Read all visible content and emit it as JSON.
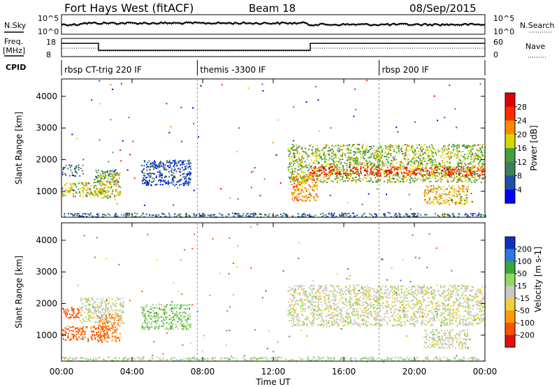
{
  "header": {
    "station": "Fort Hays West (fitACF)",
    "beam": "Beam 18",
    "date": "08/Sep/2015"
  },
  "top_panel": {
    "left_label": "N.Sky",
    "right_label": "N.Search",
    "left_ticks": [
      "10^5",
      "10^0"
    ],
    "right_ticks": [
      "10^5",
      "10^0"
    ]
  },
  "freq_panel": {
    "left_label_line1": "Freq.",
    "left_label_line2": "[MHz]",
    "right_label": "Nave",
    "left_ticks": [
      "18",
      "8"
    ],
    "right_ticks": [
      "60",
      "0"
    ]
  },
  "cpid": {
    "label": "CPID",
    "segments": [
      {
        "label": "rbsp CT-trig 220 IF",
        "start_hour": 0.0
      },
      {
        "label": "themis -3300 IF",
        "start_hour": 7.7
      },
      {
        "label": "rbsp 200 IF",
        "start_hour": 18.0
      }
    ]
  },
  "chart_data": [
    {
      "type": "heatmap",
      "name": "power",
      "title": "",
      "xlabel": "",
      "ylabel": "Slant Range [km]",
      "xlim": [
        0,
        24
      ],
      "ylim": [
        180,
        4550
      ],
      "yticks": [
        1000,
        2000,
        3000,
        4000
      ],
      "colorbar_label": "Power [dB]",
      "colorbar_ticks": [
        4,
        8,
        12,
        16,
        20,
        24,
        28
      ],
      "colorbar_range": [
        0,
        32
      ],
      "colors": [
        "#0000ff",
        "#1f50a8",
        "#3f7f5f",
        "#44a040",
        "#d8d800",
        "#ff8a00",
        "#ff2a00",
        "#e00000"
      ],
      "echo_bands": [
        {
          "x": [
            0.0,
            1.2
          ],
          "y": [
            1500,
            1850
          ],
          "value": 8
        },
        {
          "x": [
            0.0,
            2.5
          ],
          "y": [
            850,
            1300
          ],
          "value": 18
        },
        {
          "x": [
            1.8,
            3.2
          ],
          "y": [
            1300,
            1700
          ],
          "value": 10
        },
        {
          "x": [
            2.0,
            3.3
          ],
          "y": [
            800,
            1600
          ],
          "value": 18
        },
        {
          "x": [
            4.5,
            7.3
          ],
          "y": [
            1200,
            2000
          ],
          "value": 6
        },
        {
          "x": [
            12.8,
            24.0
          ],
          "y": [
            1300,
            2500
          ],
          "value": 16
        },
        {
          "x": [
            13.0,
            14.5
          ],
          "y": [
            700,
            1600
          ],
          "value": 22
        },
        {
          "x": [
            14.0,
            24.0
          ],
          "y": [
            1500,
            1800
          ],
          "value": 26
        },
        {
          "x": [
            20.5,
            23.0
          ],
          "y": [
            600,
            1200
          ],
          "value": 20
        },
        {
          "x": [
            0.0,
            24.0
          ],
          "y": [
            200,
            330
          ],
          "value": 8
        }
      ]
    },
    {
      "type": "heatmap",
      "name": "velocity",
      "title": "",
      "xlabel": "Time UT",
      "ylabel": "Slant Range [km]",
      "xlim": [
        0,
        24
      ],
      "ylim": [
        180,
        4550
      ],
      "yticks": [
        1000,
        2000,
        3000,
        4000
      ],
      "xticks": [
        "00:00",
        "04:00",
        "08:00",
        "12:00",
        "16:00",
        "20:00",
        "00:00"
      ],
      "colorbar_label": "Velocity [m s-1]",
      "colorbar_ticks": [
        200,
        100,
        50,
        15,
        -15,
        -50,
        -100,
        -200
      ],
      "colors": [
        "#1030c0",
        "#2c78e0",
        "#3aa63a",
        "#90d860",
        "#c8c8c8",
        "#f0d040",
        "#ff9a00",
        "#ff5000",
        "#e01010"
      ],
      "echo_bands": [
        {
          "x": [
            0.0,
            1.0
          ],
          "y": [
            1500,
            1900
          ],
          "value": -150
        },
        {
          "x": [
            0.0,
            2.6
          ],
          "y": [
            850,
            1300
          ],
          "value": -120
        },
        {
          "x": [
            2.0,
            3.3
          ],
          "y": [
            800,
            1700
          ],
          "value": -100
        },
        {
          "x": [
            1.0,
            3.5
          ],
          "y": [
            1400,
            2200
          ],
          "value": 0
        },
        {
          "x": [
            4.5,
            7.3
          ],
          "y": [
            1200,
            2000
          ],
          "value": 40
        },
        {
          "x": [
            12.8,
            24.0
          ],
          "y": [
            1300,
            2600
          ],
          "value": 0
        },
        {
          "x": [
            20.5,
            23.0
          ],
          "y": [
            600,
            1200
          ],
          "value": 0
        },
        {
          "x": [
            0.0,
            24.0
          ],
          "y": [
            200,
            330
          ],
          "value": 20
        }
      ]
    }
  ]
}
